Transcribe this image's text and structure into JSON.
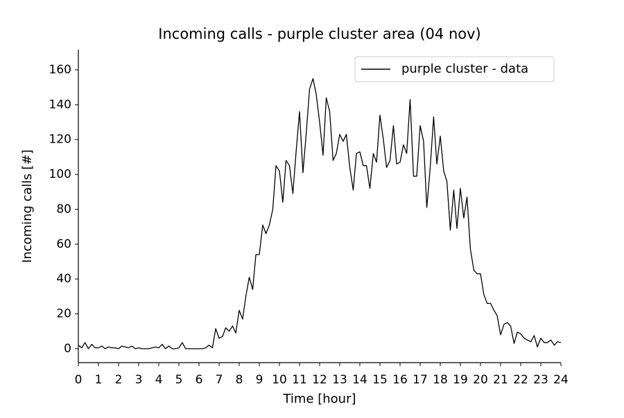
{
  "chart_data": {
    "type": "line",
    "title": "Incoming calls - purple cluster area (04 nov)",
    "xlabel": "Time [hour]",
    "ylabel": "Incoming calls [#]",
    "x": [
      0,
      0.17,
      0.33,
      0.5,
      0.67,
      0.83,
      1,
      1.17,
      1.33,
      1.5,
      1.67,
      1.83,
      2,
      2.17,
      2.33,
      2.5,
      2.67,
      2.83,
      3,
      3.17,
      3.33,
      3.5,
      3.67,
      3.83,
      4,
      4.17,
      4.33,
      4.5,
      4.67,
      4.83,
      5,
      5.17,
      5.33,
      5.5,
      5.67,
      5.83,
      6,
      6.17,
      6.33,
      6.5,
      6.67,
      6.83,
      7,
      7.17,
      7.33,
      7.5,
      7.67,
      7.83,
      8,
      8.17,
      8.33,
      8.5,
      8.67,
      8.83,
      9,
      9.17,
      9.33,
      9.5,
      9.67,
      9.83,
      10,
      10.17,
      10.33,
      10.5,
      10.67,
      10.83,
      11,
      11.17,
      11.33,
      11.5,
      11.67,
      11.83,
      12,
      12.17,
      12.33,
      12.5,
      12.67,
      12.83,
      13,
      13.17,
      13.33,
      13.5,
      13.67,
      13.83,
      14,
      14.17,
      14.33,
      14.5,
      14.67,
      14.83,
      15,
      15.17,
      15.33,
      15.5,
      15.67,
      15.83,
      16,
      16.17,
      16.33,
      16.5,
      16.67,
      16.83,
      17,
      17.17,
      17.33,
      17.5,
      17.67,
      17.83,
      18,
      18.17,
      18.33,
      18.5,
      18.67,
      18.83,
      19,
      19.17,
      19.33,
      19.5,
      19.67,
      19.83,
      20,
      20.17,
      20.33,
      20.5,
      20.67,
      20.83,
      21,
      21.17,
      21.33,
      21.5,
      21.67,
      21.83,
      22,
      22.17,
      22.33,
      22.5,
      22.67,
      22.83,
      23,
      23.17,
      23.33,
      23.5,
      23.67,
      23.83,
      24
    ],
    "series": [
      {
        "name": "purple cluster - data",
        "color": "#000000",
        "values": [
          2,
          0.5,
          3.5,
          0,
          2.5,
          0.5,
          0.5,
          1.5,
          0,
          1,
          0.5,
          0.5,
          0,
          1.5,
          1,
          0.5,
          1.5,
          0,
          0.5,
          0,
          0,
          0,
          0.5,
          1,
          0.5,
          2.5,
          0,
          1.5,
          0,
          0,
          0.5,
          3.5,
          0,
          0,
          0,
          0,
          0,
          0,
          0.5,
          2,
          0.5,
          11.5,
          6,
          7,
          12,
          10,
          13,
          9,
          22,
          17,
          30,
          41,
          34,
          54,
          54,
          71,
          66,
          71,
          80,
          105,
          102,
          84,
          108,
          105,
          89,
          113,
          136,
          101,
          123,
          149,
          155,
          146,
          130,
          111,
          144,
          136,
          108,
          112,
          123,
          119,
          123,
          104,
          91,
          112,
          113,
          105,
          105,
          92,
          112,
          107,
          134,
          120,
          104,
          108,
          128,
          106,
          107,
          117,
          112,
          143,
          99,
          99,
          128,
          119,
          81,
          104,
          133,
          106,
          122,
          102,
          96,
          68,
          91,
          69,
          92,
          75,
          87,
          57,
          45,
          43,
          43,
          31,
          26,
          26,
          22,
          19,
          8,
          14,
          15,
          13,
          3,
          9.5,
          8.5,
          6,
          5,
          4,
          7.5,
          1,
          6,
          3.5,
          3.5,
          5,
          2,
          4,
          3.5
        ]
      }
    ],
    "xlim": [
      0,
      24
    ],
    "ylim": [
      -8,
      171.5
    ],
    "xticks": [
      0,
      1,
      2,
      3,
      4,
      5,
      6,
      7,
      8,
      9,
      10,
      11,
      12,
      13,
      14,
      15,
      16,
      17,
      18,
      19,
      20,
      21,
      22,
      23,
      24
    ],
    "yticks": [
      0,
      20,
      40,
      60,
      80,
      100,
      120,
      140,
      160
    ],
    "legend": "upper right",
    "grid": false
  }
}
